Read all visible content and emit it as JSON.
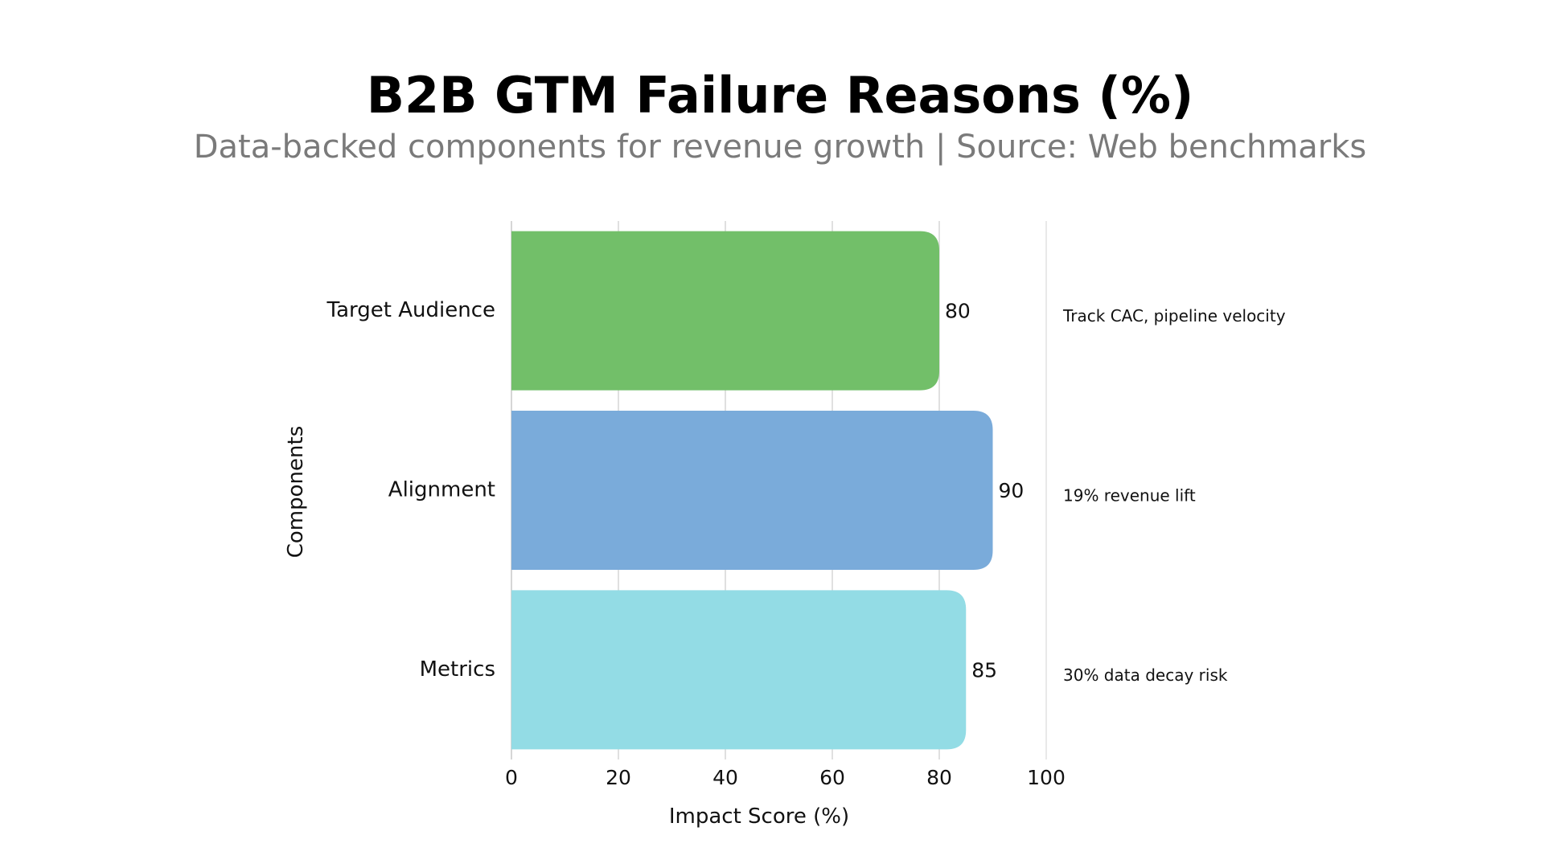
{
  "chart_data": {
    "type": "bar",
    "orientation": "horizontal",
    "title": "B2B GTM Failure Reasons (%)",
    "subtitle": "Data-backed components for revenue growth | Source: Web benchmarks",
    "xlabel": "Impact Score (%)",
    "ylabel": "Components",
    "categories": [
      "Target Audience",
      "Alignment",
      "Metrics"
    ],
    "values": [
      80,
      90,
      85
    ],
    "colors": [
      "#72bf69",
      "#7aabda",
      "#93dce5"
    ],
    "annotations": [
      "Track CAC, pipeline velocity",
      "19% revenue lift",
      "30% data decay risk"
    ],
    "xlim": [
      0,
      100
    ],
    "xticks": [
      0,
      20,
      40,
      60,
      80,
      100
    ],
    "grid": "vertical",
    "legend": "none"
  }
}
